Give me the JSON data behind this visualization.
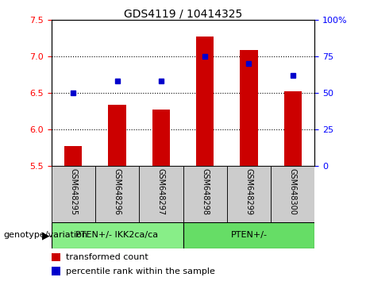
{
  "title": "GDS4119 / 10414325",
  "categories": [
    "GSM648295",
    "GSM648296",
    "GSM648297",
    "GSM648298",
    "GSM648299",
    "GSM648300"
  ],
  "bar_values": [
    5.77,
    6.33,
    6.27,
    7.27,
    7.08,
    6.52
  ],
  "scatter_values": [
    50,
    58,
    58,
    75,
    70,
    62
  ],
  "ylim_left": [
    5.5,
    7.5
  ],
  "ylim_right": [
    0,
    100
  ],
  "yticks_left": [
    5.5,
    6.0,
    6.5,
    7.0,
    7.5
  ],
  "yticks_right": [
    0,
    25,
    50,
    75,
    100
  ],
  "ytick_labels_right": [
    "0",
    "25",
    "50",
    "75",
    "100%"
  ],
  "bar_color": "#cc0000",
  "scatter_color": "#0000cc",
  "bar_bottom": 5.5,
  "group1_label": "PTEN+/- IKK2ca/ca",
  "group2_label": "PTEN+/-",
  "group1_color": "#88ee88",
  "group2_color": "#66dd66",
  "group1_indices": [
    0,
    1,
    2
  ],
  "group2_indices": [
    3,
    4,
    5
  ],
  "legend_bar_label": "transformed count",
  "legend_scatter_label": "percentile rank within the sample",
  "genotype_label": "genotype/variation",
  "label_bg_color": "#cccccc",
  "title_fontsize": 10,
  "tick_fontsize": 8,
  "cat_fontsize": 7,
  "legend_fontsize": 8,
  "group_fontsize": 8,
  "genotype_fontsize": 8
}
